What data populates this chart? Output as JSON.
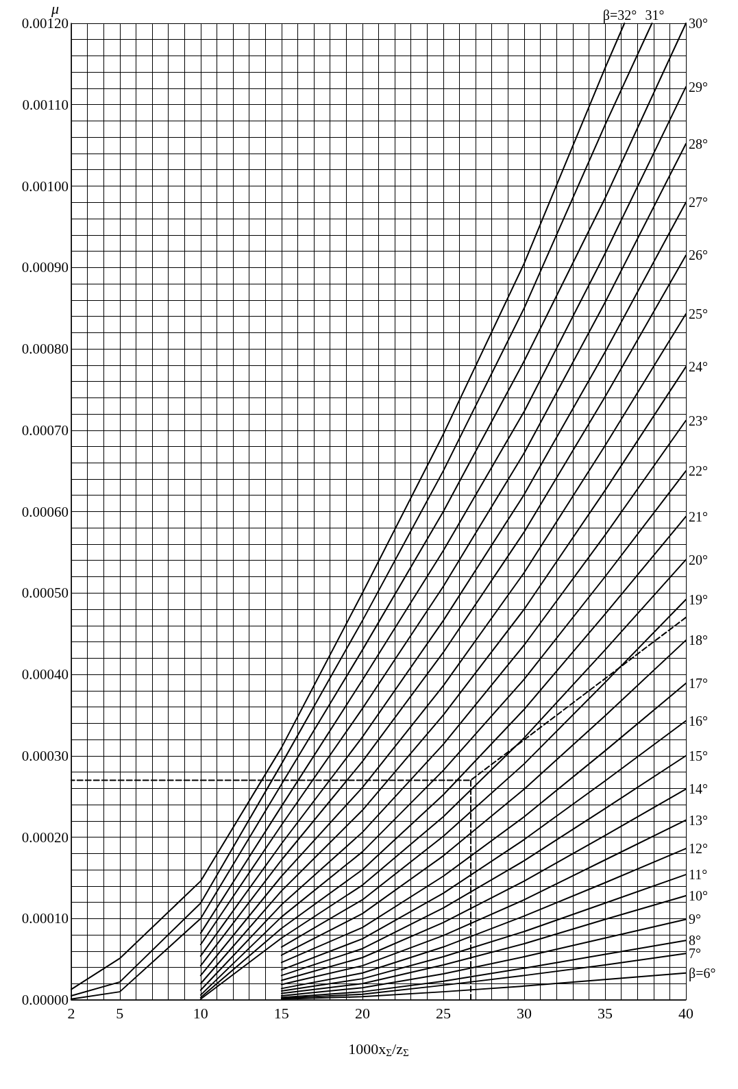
{
  "chart_data": {
    "type": "line",
    "xlabel": "1000x$_{Σ}$/z$_{Σ}$",
    "ylabel": "μ",
    "legend": false,
    "grid": true,
    "marker": "none",
    "line_style": "solid",
    "xlim": [
      2,
      40
    ],
    "xticks": [
      2,
      {
        "value": 3,
        "label": null
      },
      {
        "value": 4,
        "label": null
      },
      5,
      {
        "value": 6,
        "label": null
      },
      {
        "value": 7,
        "label": null
      },
      {
        "value": 8,
        "label": null
      },
      {
        "value": 9,
        "label": null
      },
      10,
      {
        "value": 11,
        "label": null
      },
      {
        "value": 12,
        "label": null
      },
      {
        "value": 13,
        "label": null
      },
      {
        "value": 14,
        "label": null
      },
      15,
      {
        "value": 16,
        "label": null
      },
      {
        "value": 17,
        "label": null
      },
      {
        "value": 18,
        "label": null
      },
      {
        "value": 19,
        "label": null
      },
      20,
      {
        "value": 21,
        "label": null
      },
      {
        "value": 22,
        "label": null
      },
      {
        "value": 23,
        "label": null
      },
      {
        "value": 24,
        "label": null
      },
      25,
      {
        "value": 26,
        "label": null
      },
      {
        "value": 27,
        "label": null
      },
      {
        "value": 28,
        "label": null
      },
      {
        "value": 29,
        "label": null
      },
      30,
      {
        "value": 31,
        "label": null
      },
      {
        "value": 32,
        "label": null
      },
      {
        "value": 33,
        "label": null
      },
      {
        "value": 34,
        "label": null
      },
      35,
      {
        "value": 36,
        "label": null
      },
      {
        "value": 37,
        "label": null
      },
      {
        "value": 38,
        "label": null
      },
      {
        "value": 39,
        "label": null
      },
      40
    ],
    "ylim": [
      0,
      0.0012
    ],
    "yticks": [
      {
        "value": 0,
        "label": "0.00000"
      },
      {
        "value": 2e-05,
        "label": null
      },
      {
        "value": 4e-05,
        "label": null
      },
      {
        "value": 6e-05,
        "label": null
      },
      {
        "value": 8e-05,
        "label": null
      },
      {
        "value": 0.0001,
        "label": "0.00010"
      },
      {
        "value": 0.00012,
        "label": null
      },
      {
        "value": 0.00014,
        "label": null
      },
      {
        "value": 0.00016,
        "label": null
      },
      {
        "value": 0.00018,
        "label": null
      },
      {
        "value": 0.0002,
        "label": "0.00020"
      },
      {
        "value": 0.00022,
        "label": null
      },
      {
        "value": 0.00024,
        "label": null
      },
      {
        "value": 0.00026,
        "label": null
      },
      {
        "value": 0.00028,
        "label": null
      },
      {
        "value": 0.0003,
        "label": "0.00030"
      },
      {
        "value": 0.00032,
        "label": null
      },
      {
        "value": 0.00034,
        "label": null
      },
      {
        "value": 0.00036,
        "label": null
      },
      {
        "value": 0.00038,
        "label": null
      },
      {
        "value": 0.0004,
        "label": "0.00040"
      },
      {
        "value": 0.00042,
        "label": null
      },
      {
        "value": 0.00044,
        "label": null
      },
      {
        "value": 0.00046,
        "label": null
      },
      {
        "value": 0.00048,
        "label": null
      },
      {
        "value": 0.0005,
        "label": "0.00050"
      },
      {
        "value": 0.00052,
        "label": null
      },
      {
        "value": 0.00054,
        "label": null
      },
      {
        "value": 0.00056,
        "label": null
      },
      {
        "value": 0.00058,
        "label": null
      },
      {
        "value": 0.0006,
        "label": "0.00060"
      },
      {
        "value": 0.00062,
        "label": null
      },
      {
        "value": 0.00064,
        "label": null
      },
      {
        "value": 0.00066,
        "label": null
      },
      {
        "value": 0.00068,
        "label": null
      },
      {
        "value": 0.0007,
        "label": "0.00070"
      },
      {
        "value": 0.00072,
        "label": null
      },
      {
        "value": 0.00074,
        "label": null
      },
      {
        "value": 0.00076,
        "label": null
      },
      {
        "value": 0.00078,
        "label": null
      },
      {
        "value": 0.0008,
        "label": "0.00080"
      },
      {
        "value": 0.00082,
        "label": null
      },
      {
        "value": 0.00084,
        "label": null
      },
      {
        "value": 0.00086,
        "label": null
      },
      {
        "value": 0.00088,
        "label": null
      },
      {
        "value": 0.0009,
        "label": "0.00090"
      },
      {
        "value": 0.00092,
        "label": null
      },
      {
        "value": 0.00094,
        "label": null
      },
      {
        "value": 0.00096,
        "label": null
      },
      {
        "value": 0.00098,
        "label": null
      },
      {
        "value": 0.001,
        "label": "0.00100"
      },
      {
        "value": 0.00102,
        "label": null
      },
      {
        "value": 0.00104,
        "label": null
      },
      {
        "value": 0.00106,
        "label": null
      },
      {
        "value": 0.00108,
        "label": null
      },
      {
        "value": 0.0011,
        "label": "0.00110"
      },
      {
        "value": 0.00112,
        "label": null
      },
      {
        "value": 0.00114,
        "label": null
      },
      {
        "value": 0.00116,
        "label": null
      },
      {
        "value": 0.00118,
        "label": null
      },
      {
        "value": 0.0012,
        "label": "0.00120"
      }
    ],
    "series": [
      {
        "name": "β=6°",
        "color": "#000000",
        "x": [
          15,
          20,
          25,
          30,
          35,
          40
        ],
        "values": [
          1e-06,
          4e-06,
          1e-05,
          1.7e-05,
          2.5e-05,
          3.3e-05
        ]
      },
      {
        "name": "7°",
        "color": "#000000",
        "x": [
          15,
          20,
          25,
          30,
          35,
          40
        ],
        "values": [
          2e-06,
          7e-06,
          1.8e-05,
          3e-05,
          4.3e-05,
          5.7e-05
        ]
      },
      {
        "name": "8°",
        "color": "#000000",
        "x": [
          15,
          20,
          25,
          30,
          35,
          40
        ],
        "values": [
          3e-06,
          1e-05,
          2.3e-05,
          3.9e-05,
          5.6e-05,
          7.3e-05
        ]
      },
      {
        "name": "9°",
        "color": "#000000",
        "x": [
          15,
          20,
          25,
          30,
          35,
          40
        ],
        "values": [
          5e-06,
          1.5e-05,
          3.2e-05,
          5.3e-05,
          7.6e-05,
          9.9e-05
        ]
      },
      {
        "name": "10°",
        "color": "#000000",
        "x": [
          15,
          20,
          25,
          30,
          35,
          40
        ],
        "values": [
          8e-06,
          2e-05,
          4.3e-05,
          6.9e-05,
          9.9e-05,
          0.000128
        ]
      },
      {
        "name": "11°",
        "color": "#000000",
        "x": [
          15,
          20,
          25,
          30,
          35,
          40
        ],
        "values": [
          1.1e-05,
          2.6e-05,
          5.3e-05,
          8.4e-05,
          0.000119,
          0.000154
        ]
      },
      {
        "name": "12°",
        "color": "#000000",
        "x": [
          15,
          20,
          25,
          30,
          35,
          40
        ],
        "values": [
          1.4e-05,
          3.3e-05,
          6.5e-05,
          0.000103,
          0.000144,
          0.000186
        ]
      },
      {
        "name": "13°",
        "color": "#000000",
        "x": [
          15,
          20,
          25,
          30,
          35,
          40
        ],
        "values": [
          1.9e-05,
          4.2e-05,
          7.9e-05,
          0.000123,
          0.000172,
          0.000221
        ]
      },
      {
        "name": "14°",
        "color": "#000000",
        "x": [
          15,
          20,
          25,
          30,
          35,
          40
        ],
        "values": [
          2.4e-05,
          5.2e-05,
          9.5e-05,
          0.000146,
          0.000202,
          0.000259
        ]
      },
      {
        "name": "15°",
        "color": "#000000",
        "x": [
          15,
          20,
          25,
          30,
          35,
          40
        ],
        "values": [
          3e-05,
          6.3e-05,
          0.000113,
          0.000171,
          0.000235,
          0.0003
        ]
      },
      {
        "name": "16°",
        "color": "#000000",
        "x": [
          15,
          20,
          25,
          30,
          35,
          40
        ],
        "values": [
          3.7e-05,
          7.5e-05,
          0.000131,
          0.000197,
          0.000269,
          0.000343
        ]
      },
      {
        "name": "17°",
        "color": "#000000",
        "x": [
          15,
          20,
          25,
          30,
          35,
          40
        ],
        "values": [
          4.6e-05,
          8.9e-05,
          0.000152,
          0.000225,
          0.000306,
          0.000389
        ]
      },
      {
        "name": "18°",
        "color": "#000000",
        "x": [
          15,
          20,
          25,
          30,
          35,
          40
        ],
        "values": [
          5.5e-05,
          0.000106,
          0.000177,
          0.000259,
          0.000349,
          0.000442
        ]
      },
      {
        "name": "19°",
        "color": "#000000",
        "x": [
          15,
          20,
          25,
          30,
          35,
          40
        ],
        "values": [
          6.5e-05,
          0.000123,
          0.000201,
          0.00029,
          0.00039,
          0.000492
        ]
      },
      {
        "name": "20°",
        "color": "#000000",
        "x": [
          10,
          15,
          20,
          25,
          30,
          35,
          40
        ],
        "values": [
          1e-06,
          7.6e-05,
          0.000141,
          0.000225,
          0.000322,
          0.00043,
          0.000541
        ]
      },
      {
        "name": "21°",
        "color": "#000000",
        "x": [
          10,
          15,
          20,
          25,
          30,
          35,
          40
        ],
        "values": [
          3e-06,
          8.8e-05,
          0.00016,
          0.000252,
          0.000357,
          0.000474,
          0.000594
        ]
      },
      {
        "name": "22°",
        "color": "#000000",
        "x": [
          10,
          15,
          20,
          25,
          30,
          35,
          40
        ],
        "values": [
          6e-06,
          0.000102,
          0.000182,
          0.000282,
          0.000394,
          0.00052,
          0.00065
        ]
      },
      {
        "name": "23°",
        "color": "#000000",
        "x": [
          10,
          15,
          20,
          25,
          30,
          35,
          40
        ],
        "values": [
          1.2e-05,
          0.000117,
          0.000206,
          0.000314,
          0.000436,
          0.000571,
          0.000712
        ]
      },
      {
        "name": "24°",
        "color": "#000000",
        "x": [
          10,
          15,
          20,
          25,
          30,
          35,
          40
        ],
        "values": [
          2e-05,
          0.000134,
          0.000233,
          0.00035,
          0.00048,
          0.000626,
          0.000778
        ]
      },
      {
        "name": "25°",
        "color": "#000000",
        "x": [
          10,
          15,
          20,
          25,
          30,
          35,
          40
        ],
        "values": [
          3e-05,
          0.000152,
          0.000261,
          0.000386,
          0.000525,
          0.000681,
          0.000843
        ]
      },
      {
        "name": "26°",
        "color": "#000000",
        "x": [
          10,
          15,
          20,
          25,
          30,
          35,
          40
        ],
        "values": [
          4.2e-05,
          0.000172,
          0.000293,
          0.000427,
          0.000575,
          0.000741,
          0.000915
        ]
      },
      {
        "name": "27°",
        "color": "#000000",
        "x": [
          10,
          15,
          20,
          25,
          30,
          35,
          40
        ],
        "values": [
          5.4e-05,
          0.000192,
          0.000323,
          0.000466,
          0.000621,
          0.000796,
          0.00098
        ]
      },
      {
        "name": "28°",
        "color": "#000000",
        "x": [
          10,
          15,
          20,
          25,
          30,
          35,
          40
        ],
        "values": [
          6.8e-05,
          0.000215,
          0.000358,
          0.000508,
          0.000672,
          0.000857,
          0.001052
        ]
      },
      {
        "name": "29°",
        "color": "#000000",
        "x": [
          10,
          15,
          20,
          25,
          30,
          35,
          40
        ],
        "values": [
          8.2e-05,
          0.000238,
          0.000393,
          0.000552,
          0.000723,
          0.000917,
          0.001122
        ]
      },
      {
        "name": "30°",
        "color": "#000000",
        "x": [
          2,
          5,
          10,
          15,
          20,
          25,
          30,
          35,
          40
        ],
        "values": [
          1e-06,
          1e-05,
          0.0001,
          0.000265,
          0.00043,
          0.0006,
          0.000785,
          0.000985,
          0.0012
        ]
      },
      {
        "name": "31°",
        "color": "#000000",
        "x": [
          2,
          5,
          10,
          15,
          20,
          25,
          30,
          35,
          37.9
        ],
        "values": [
          5e-06,
          2.2e-05,
          0.000119,
          0.00029,
          0.000466,
          0.00065,
          0.00085,
          0.001075,
          0.0012
        ]
      },
      {
        "name": "β=32°",
        "color": "#000000",
        "x": [
          2,
          5,
          10,
          15,
          20,
          25,
          30,
          35,
          36.2
        ],
        "values": [
          1.3e-05,
          5.1e-05,
          0.000146,
          0.00031,
          0.0005,
          0.000695,
          0.000905,
          0.001145,
          0.0012
        ]
      },
      {
        "color": "#000000",
        "line_style": "dashed",
        "x": [
          40,
          26.7,
          2
        ],
        "values": [
          0.00047,
          0.00027,
          0.00027
        ]
      },
      {
        "color": "#000000",
        "line_style": "dashed",
        "x": [
          26.7,
          26.7
        ],
        "values": [
          0,
          0.00027
        ]
      }
    ]
  }
}
